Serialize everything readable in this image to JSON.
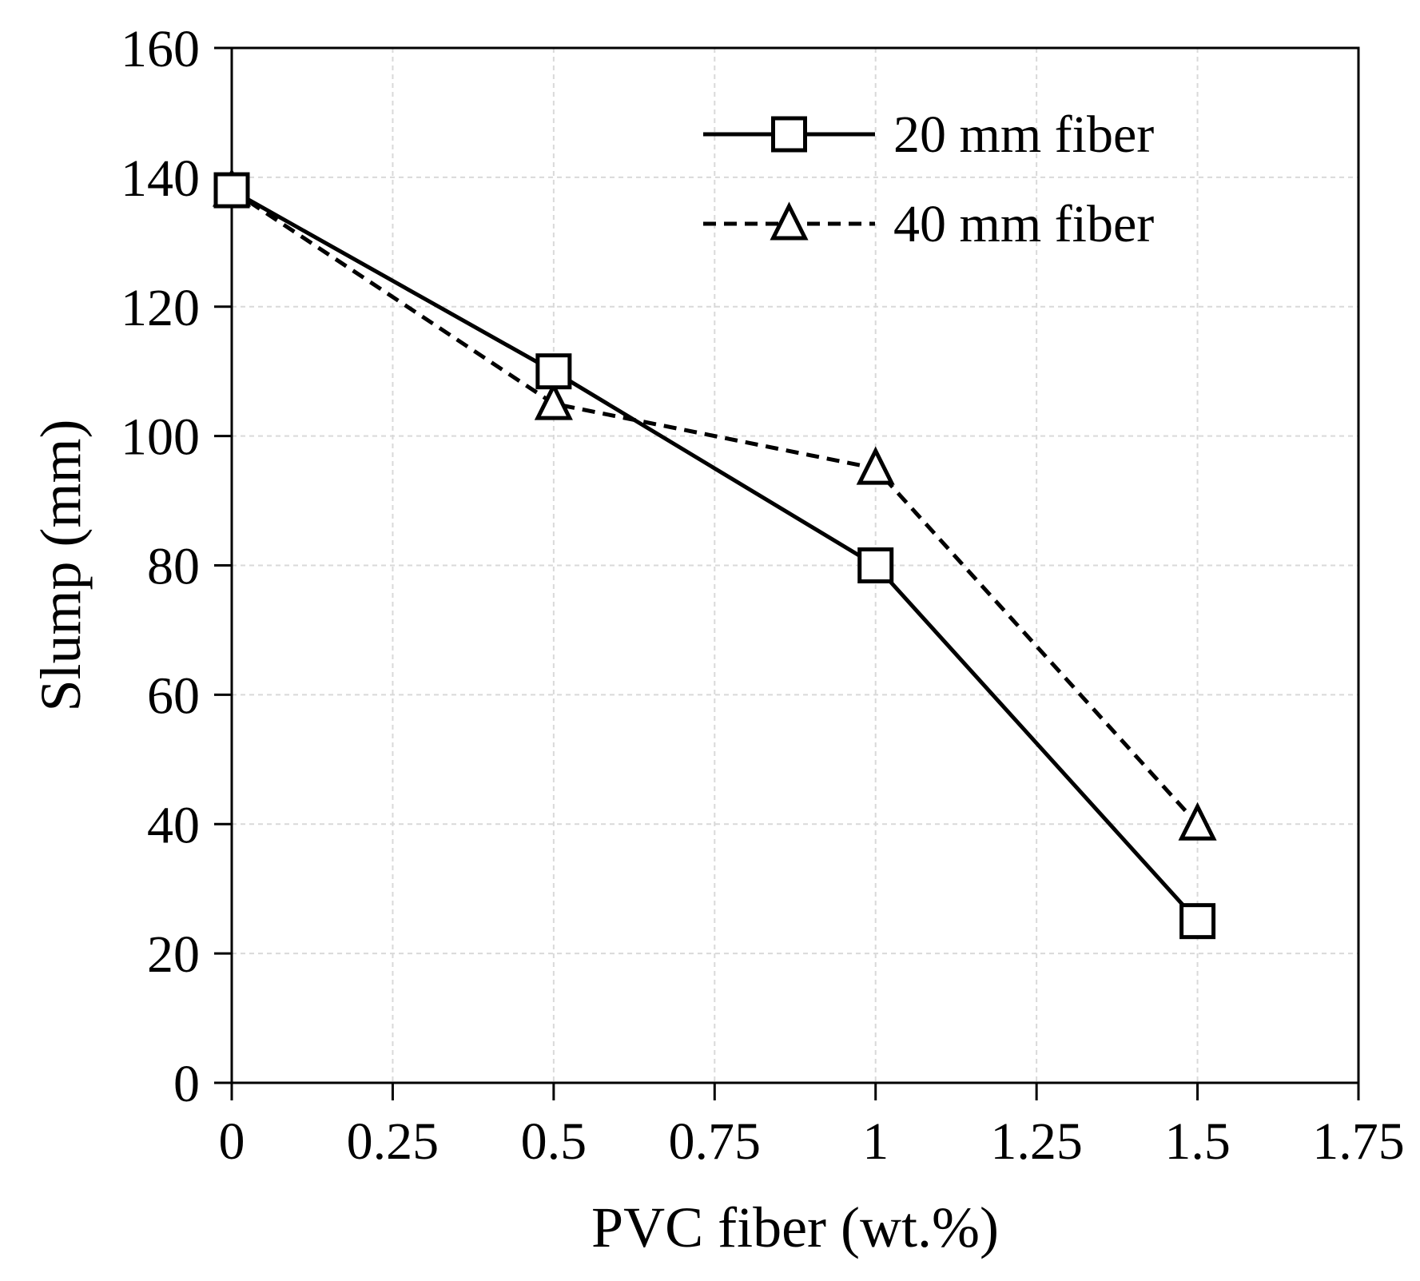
{
  "chart_data": {
    "type": "line",
    "title": "",
    "xlabel": "PVC fiber (wt.%)",
    "ylabel": "Slump (mm)",
    "xlim": [
      0,
      1.75
    ],
    "ylim": [
      0,
      160
    ],
    "xticks": [
      "0",
      "0.25",
      "0.5",
      "0.75",
      "1",
      "1.25",
      "1.5",
      "1.75"
    ],
    "yticks": [
      "0",
      "20",
      "40",
      "60",
      "80",
      "100",
      "120",
      "140",
      "160"
    ],
    "grid": true,
    "legend_position": "top-right",
    "x": [
      0,
      0.5,
      1,
      1.5
    ],
    "series": [
      {
        "name": "20 mm fiber",
        "values": [
          138,
          110,
          80,
          25
        ],
        "marker": "square",
        "line": "solid"
      },
      {
        "name": "40 mm fiber",
        "values": [
          138,
          105,
          95,
          40
        ],
        "marker": "triangle",
        "line": "dashed"
      }
    ]
  }
}
